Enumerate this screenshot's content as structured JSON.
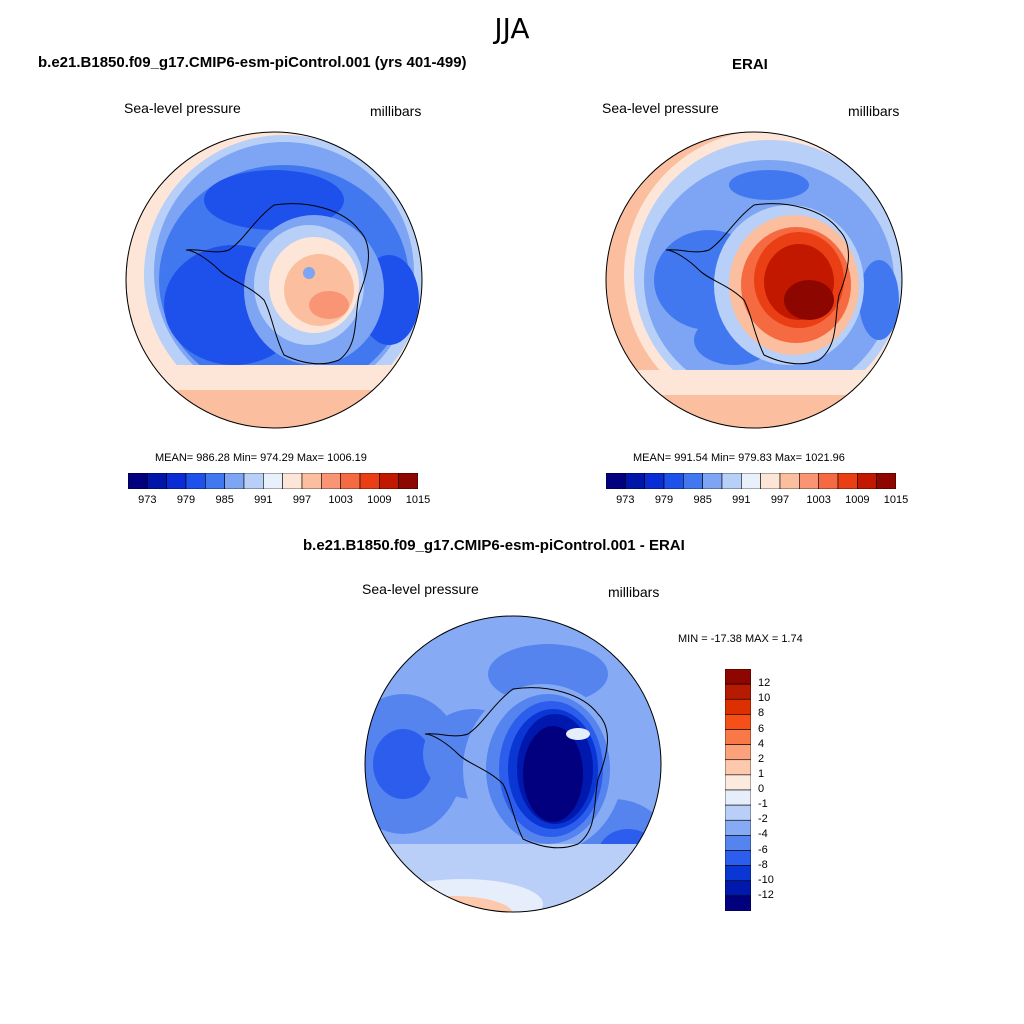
{
  "season": "JJA",
  "panels": {
    "model": {
      "title": "b.e21.B1850.f09_g17.CMIP6-esm-piControl.001 (yrs 401-499)",
      "left_label": "Sea-level pressure",
      "right_label": "millibars",
      "stats": "MEAN= 986.28  Min= 974.29  Max= 1006.19"
    },
    "obs": {
      "title": "ERAI",
      "left_label": "Sea-level pressure",
      "right_label": "millibars",
      "stats": "MEAN= 991.54  Min= 979.83  Max= 1021.96"
    },
    "diff": {
      "title": "b.e21.B1850.f09_g17.CMIP6-esm-piControl.001 - ERAI",
      "left_label": "Sea-level pressure",
      "right_label": "millibars",
      "stats": "MIN = -17.38 MAX =   1.74"
    }
  },
  "colorbar_abs": {
    "labels": [
      "973",
      "979",
      "985",
      "991",
      "997",
      "1003",
      "1009",
      "1015"
    ],
    "colors": [
      "#02007f",
      "#0016a8",
      "#0a2cd4",
      "#1e50ec",
      "#4178f0",
      "#7ea4f4",
      "#b8cff8",
      "#e8f0fc",
      "#fde6d8",
      "#fbbfa0",
      "#f99474",
      "#f66a42",
      "#ea3e14",
      "#c21800",
      "#8e0600"
    ]
  },
  "colorbar_diff": {
    "labels": [
      "12",
      "10",
      "8",
      "6",
      "4",
      "2",
      "1",
      "0",
      "-1",
      "-2",
      "-4",
      "-6",
      "-8",
      "-10",
      "-12"
    ],
    "colors": [
      "#8e0600",
      "#b61a00",
      "#dc3000",
      "#f45018",
      "#f87848",
      "#fba27c",
      "#fdc8ac",
      "#fdeade",
      "#e6eefc",
      "#b9cff8",
      "#86aaf4",
      "#5584ef",
      "#2c5ded",
      "#0a37d4",
      "#0018ae",
      "#030080"
    ]
  },
  "legend_colors": {
    "land_outline": "#000000"
  }
}
